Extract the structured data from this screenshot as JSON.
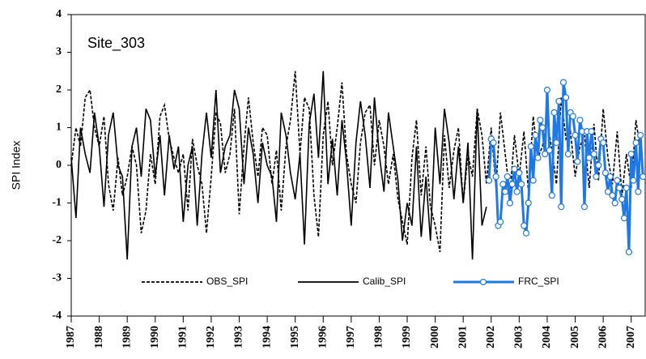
{
  "chart_data": {
    "type": "line",
    "annotation": "Site_303",
    "ylabel": "SPI Index",
    "xlim": [
      1987,
      2007.5
    ],
    "ylim": [
      -4,
      4
    ],
    "xticks": [
      1987,
      1988,
      1989,
      1990,
      1991,
      1992,
      1993,
      1994,
      1995,
      1996,
      1997,
      1998,
      1999,
      2000,
      2001,
      2002,
      2003,
      2004,
      2005,
      2006,
      2007
    ],
    "yticks": [
      -4,
      -3,
      -2,
      -1,
      0,
      1,
      2,
      3,
      4
    ],
    "legend": "bottom",
    "series": [
      {
        "name": "OBS_SPI",
        "color": "#000000",
        "style": "dashed",
        "marker": false,
        "x": [
          1987,
          1987.17,
          1987.33,
          1987.5,
          1987.67,
          1987.83,
          1988,
          1988.17,
          1988.33,
          1988.5,
          1988.67,
          1988.83,
          1989,
          1989.17,
          1989.33,
          1989.5,
          1989.67,
          1989.83,
          1990,
          1990.17,
          1990.33,
          1990.5,
          1990.67,
          1990.83,
          1991,
          1991.17,
          1991.33,
          1991.5,
          1991.67,
          1991.83,
          1992,
          1992.17,
          1992.33,
          1992.5,
          1992.67,
          1992.83,
          1993,
          1993.17,
          1993.33,
          1993.5,
          1993.67,
          1993.83,
          1994,
          1994.17,
          1994.33,
          1994.5,
          1994.67,
          1994.83,
          1995,
          1995.17,
          1995.33,
          1995.5,
          1995.67,
          1995.83,
          1996,
          1996.17,
          1996.33,
          1996.5,
          1996.67,
          1996.83,
          1997,
          1997.17,
          1997.33,
          1997.5,
          1997.67,
          1997.83,
          1998,
          1998.17,
          1998.33,
          1998.5,
          1998.67,
          1998.83,
          1999,
          1999.17,
          1999.33,
          1999.5,
          1999.67,
          1999.83,
          2000,
          2000.17,
          2000.33,
          2000.5,
          2000.67,
          2000.83,
          2001,
          2001.17,
          2001.33,
          2001.5,
          2001.67,
          2001.83,
          2002,
          2002.17,
          2002.33,
          2002.5,
          2002.67,
          2002.83,
          2003,
          2003.17,
          2003.33,
          2003.5,
          2003.67,
          2003.83,
          2004,
          2004.17,
          2004.33,
          2004.5,
          2004.67,
          2004.83,
          2005,
          2005.17,
          2005.33,
          2005.5,
          2005.67,
          2005.83,
          2006,
          2006.17,
          2006.33,
          2006.5,
          2006.67,
          2006.83,
          2007,
          2007.17,
          2007.33
        ],
        "values": [
          0,
          1,
          0.5,
          1.8,
          2.0,
          1.0,
          0.5,
          1.3,
          -0.5,
          -1.2,
          0.2,
          -0.8,
          -0.3,
          0.5,
          0.0,
          -1.8,
          -1.2,
          0.3,
          -0.5,
          1.3,
          1.6,
          0.7,
          0.2,
          -0.2,
          0.3,
          -1.2,
          0.7,
          0.0,
          -0.5,
          -1.8,
          -0.3,
          1.4,
          1.1,
          -0.2,
          0.3,
          1.5,
          -1.3,
          0.5,
          1.8,
          0.6,
          -0.3,
          1.0,
          0.8,
          -0.5,
          0.4,
          -1.2,
          0.5,
          1.2,
          2.5,
          0.3,
          1.8,
          1.5,
          -0.8,
          -1.9,
          0.8,
          1.7,
          0.0,
          1.0,
          2.2,
          0.3,
          -0.5,
          -1.0,
          0.6,
          1.4,
          1.6,
          0.0,
          1.2,
          0.5,
          -0.5,
          0.3,
          -0.9,
          -1.5,
          -2.1,
          0.2,
          1.2,
          -0.8,
          0.5,
          -1.1,
          -1.6,
          -2.3,
          0.8,
          -0.6,
          0.4,
          1.0,
          -1.0,
          0.3,
          -0.3,
          1.5,
          0.8,
          -0.5,
          1.0,
          -0.6,
          1.4,
          0.3,
          -0.8,
          0.8,
          -0.3,
          0.9,
          -0.7,
          1.3,
          0.2,
          0.5,
          1.2,
          0.4,
          -0.5,
          1.8,
          0.7,
          0.9,
          -0.3,
          0.5,
          0.8,
          -0.6,
          1.1,
          -0.4,
          1.5,
          0.2,
          -0.5,
          0.9,
          -0.8,
          0.3,
          -0.6,
          1.2,
          0.4
        ]
      },
      {
        "name": "Calib_SPI",
        "color": "#000000",
        "style": "solid",
        "marker": false,
        "x": [
          1987,
          1987.17,
          1987.33,
          1987.5,
          1987.67,
          1987.83,
          1988,
          1988.17,
          1988.33,
          1988.5,
          1988.67,
          1988.83,
          1989,
          1989.17,
          1989.33,
          1989.5,
          1989.67,
          1989.83,
          1990,
          1990.17,
          1990.33,
          1990.5,
          1990.67,
          1990.83,
          1991,
          1991.17,
          1991.33,
          1991.5,
          1991.67,
          1991.83,
          1992,
          1992.17,
          1992.33,
          1992.5,
          1992.67,
          1992.83,
          1993,
          1993.17,
          1993.33,
          1993.5,
          1993.67,
          1993.83,
          1994,
          1994.17,
          1994.33,
          1994.5,
          1994.67,
          1994.83,
          1995,
          1995.17,
          1995.33,
          1995.5,
          1995.67,
          1995.83,
          1996,
          1996.17,
          1996.33,
          1996.5,
          1996.67,
          1996.83,
          1997,
          1997.17,
          1997.33,
          1997.5,
          1997.67,
          1997.83,
          1998,
          1998.17,
          1998.33,
          1998.5,
          1998.67,
          1998.83,
          1999,
          1999.17,
          1999.33,
          1999.5,
          1999.67,
          1999.83,
          2000,
          2000.17,
          2000.33,
          2000.5,
          2000.67,
          2000.83,
          2001,
          2001.17,
          2001.33,
          2001.5,
          2001.67,
          2001.83
        ],
        "values": [
          0.2,
          -1.4,
          1.0,
          0.3,
          -0.2,
          1.4,
          0.5,
          -1.1,
          0.8,
          1.4,
          0.0,
          -0.3,
          -2.5,
          0.5,
          1.0,
          -0.3,
          1.5,
          1.2,
          -0.3,
          0.8,
          -0.8,
          0.8,
          -0.1,
          0.5,
          -1.5,
          0.0,
          0.5,
          -1.6,
          0.3,
          1.4,
          0.2,
          2.0,
          -0.2,
          0.5,
          0.8,
          2.0,
          1.5,
          -0.5,
          1.0,
          0.3,
          -1.0,
          0.6,
          0.0,
          -0.3,
          -1.5,
          1.4,
          0.8,
          -0.2,
          -0.9,
          0.3,
          -2.1,
          1.1,
          1.9,
          0.2,
          2.5,
          -0.5,
          0.7,
          -0.8,
          1.2,
          0.1,
          -1.6,
          0.6,
          1.7,
          0.8,
          -0.6,
          1.8,
          0.3,
          -0.7,
          1.4,
          0.5,
          -0.4,
          -2.0,
          -1.0,
          -1.6,
          0.5,
          -1.9,
          -0.3,
          -2.0,
          1.0,
          -0.5,
          1.5,
          0.6,
          -0.9,
          0.5,
          -1.0,
          0.6,
          -2.5,
          1.5,
          -1.6,
          -1.1
        ]
      },
      {
        "name": "FRC_SPI",
        "color": "#1e78e6",
        "style": "solid",
        "marker": true,
        "x": [
          2001.92,
          2002,
          2002.08,
          2002.17,
          2002.25,
          2002.33,
          2002.42,
          2002.5,
          2002.58,
          2002.67,
          2002.75,
          2002.83,
          2002.92,
          2003,
          2003.08,
          2003.17,
          2003.25,
          2003.33,
          2003.42,
          2003.5,
          2003.58,
          2003.67,
          2003.75,
          2003.83,
          2003.92,
          2004,
          2004.08,
          2004.17,
          2004.25,
          2004.33,
          2004.42,
          2004.5,
          2004.58,
          2004.67,
          2004.75,
          2004.83,
          2004.92,
          2005,
          2005.08,
          2005.17,
          2005.25,
          2005.33,
          2005.42,
          2005.5,
          2005.58,
          2005.67,
          2005.75,
          2005.83,
          2005.92,
          2006,
          2006.08,
          2006.17,
          2006.25,
          2006.33,
          2006.42,
          2006.5,
          2006.58,
          2006.67,
          2006.75,
          2006.83,
          2006.92,
          2007,
          2007.08,
          2007.17,
          2007.25,
          2007.33,
          2007.42
        ],
        "values": [
          -0.4,
          0.7,
          0.6,
          -0.3,
          -1.6,
          -1.5,
          -0.5,
          -0.7,
          -0.3,
          -1.0,
          -0.5,
          -0.1,
          -0.7,
          -0.2,
          -0.5,
          -1.6,
          -1.8,
          -1.0,
          0.5,
          -0.4,
          0.8,
          0.2,
          1.2,
          1.0,
          0.3,
          2.0,
          0.4,
          -0.8,
          1.4,
          0.6,
          1.7,
          -1.1,
          2.2,
          1.8,
          0.3,
          1.4,
          1.3,
          0.8,
          0.1,
          1.2,
          0.9,
          -1.1,
          0.9,
          0.2,
          0.9,
          0.3,
          -0.3,
          0.0,
          0.7,
          0.6,
          -0.2,
          -0.7,
          -0.3,
          -0.8,
          -1.0,
          -0.4,
          -0.6,
          -0.9,
          -1.4,
          -0.6,
          -2.3,
          0.3,
          -0.4,
          0.6,
          -0.7,
          0.8,
          -0.3
        ]
      }
    ]
  }
}
